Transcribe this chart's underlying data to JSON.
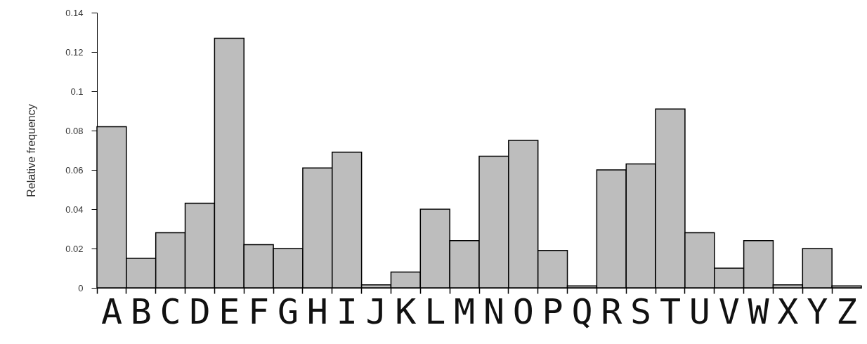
{
  "chart_data": {
    "type": "bar",
    "ylabel": "Relative frequency",
    "categories": [
      "A",
      "B",
      "C",
      "D",
      "E",
      "F",
      "G",
      "H",
      "I",
      "J",
      "K",
      "L",
      "M",
      "N",
      "O",
      "P",
      "Q",
      "R",
      "S",
      "T",
      "U",
      "V",
      "W",
      "X",
      "Y",
      "Z"
    ],
    "values": [
      0.082,
      0.015,
      0.028,
      0.043,
      0.127,
      0.022,
      0.02,
      0.061,
      0.069,
      0.0015,
      0.008,
      0.04,
      0.024,
      0.067,
      0.075,
      0.019,
      0.001,
      0.06,
      0.063,
      0.091,
      0.028,
      0.01,
      0.024,
      0.0015,
      0.02,
      0.001
    ],
    "color": "#bdbdbd",
    "ylim": [
      0,
      0.14
    ],
    "yticks": [
      0,
      0.02,
      0.04,
      0.06,
      0.08,
      0.1,
      0.12,
      0.14
    ],
    "grid": false
  }
}
